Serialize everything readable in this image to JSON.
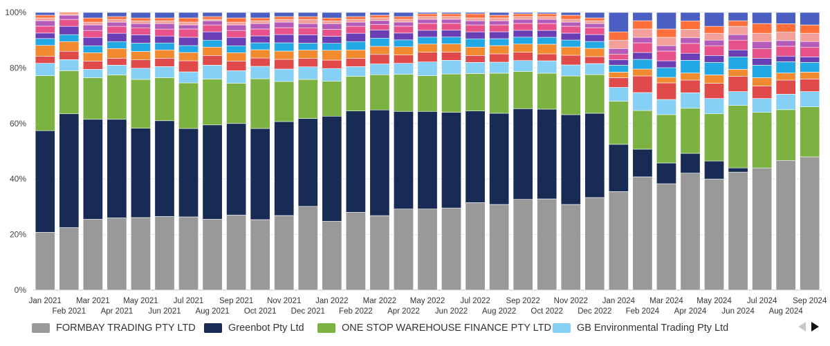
{
  "chart_data": {
    "type": "bar",
    "stacked": true,
    "normalized": true,
    "categories": [
      "Jan 2021",
      "Feb 2021",
      "Mar 2021",
      "Apr 2021",
      "May 2021",
      "Jun 2021",
      "Jul 2021",
      "Aug 2021",
      "Sep 2021",
      "Oct 2021",
      "Nov 2021",
      "Dec 2021",
      "Jan 2022",
      "Feb 2022",
      "Mar 2022",
      "Apr 2022",
      "May 2022",
      "Jun 2022",
      "Jul 2022",
      "Aug 2022",
      "Sep 2022",
      "Oct 2022",
      "Nov 2022",
      "Dec 2022",
      "Jan 2024",
      "Feb 2024",
      "Mar 2024",
      "Apr 2024",
      "May 2024",
      "Jun 2024",
      "Jul 2024",
      "Aug 2024",
      "Sep 2024"
    ],
    "x_tick_labels_row1": [
      "Jan 2021",
      "Mar 2021",
      "May 2021",
      "Jul 2021",
      "Sep 2021",
      "Nov 2021",
      "Jan 2022",
      "Mar 2022",
      "May 2022",
      "Jul 2022",
      "Sep 2022",
      "Nov 2022",
      "Jan 2024",
      "Mar 2024",
      "May 2024",
      "Jul 2024",
      "Sep 2024"
    ],
    "x_tick_labels_row2": [
      "Feb 2021",
      "Apr 2021",
      "Jun 2021",
      "Aug 2021",
      "Oct 2021",
      "Dec 2021",
      "Feb 2022",
      "Apr 2022",
      "Jun 2022",
      "Aug 2022",
      "Oct 2022",
      "Dec 2022",
      "Feb 2024",
      "Apr 2024",
      "Jun 2024",
      "Aug 2024"
    ],
    "y_tick_labels": [
      "0%",
      "20%",
      "40%",
      "60%",
      "80%",
      "100%"
    ],
    "ylim": [
      0,
      100
    ],
    "grid": true,
    "legend_position": "bottom",
    "series": [
      {
        "name": "FORMBAY TRADING PTY LTD",
        "color": "#999999",
        "values": [
          21,
          22.5,
          25.5,
          26,
          26,
          26.5,
          26.5,
          25.5,
          27,
          25.5,
          27,
          30,
          24.5,
          28,
          27.5,
          29.5,
          29.5,
          30,
          31.5,
          31,
          33,
          33,
          31,
          33.5,
          35.5,
          41,
          38.5,
          41.5,
          40,
          42.5,
          44,
          46,
          48
        ]
      },
      {
        "name": "Greenbot Pty Ltd",
        "color": "#172b54",
        "values": [
          37,
          41,
          36,
          35.5,
          32,
          34.5,
          32,
          34,
          33,
          33,
          34,
          31.5,
          37.5,
          36.5,
          39,
          35.5,
          35.5,
          35,
          33,
          33,
          33,
          32.5,
          32.5,
          30.5,
          17,
          10,
          7.5,
          7,
          6.5,
          1.5,
          0,
          0,
          0
        ]
      },
      {
        "name": "ONE STOP WAREHOUSE FINANCE PTY LTD",
        "color": "#7bb241",
        "values": [
          20,
          15.5,
          15,
          16,
          17.5,
          15.5,
          16.5,
          16.5,
          14.5,
          18,
          14.5,
          14,
          12.5,
          12.5,
          13,
          13.5,
          13,
          14,
          13.5,
          14.5,
          13.5,
          13,
          14,
          14,
          15.5,
          14,
          17.5,
          16,
          17,
          22.5,
          20,
          18,
          18
        ]
      },
      {
        "name": "GB Environmental Trading Pty Ltd",
        "color": "#86d0f5",
        "values": [
          4.5,
          4,
          3,
          3.5,
          4,
          4,
          4,
          5,
          4.5,
          4.5,
          4.5,
          4.5,
          4.5,
          3.5,
          4,
          4,
          5,
          5,
          4,
          4,
          4,
          4.5,
          4,
          4,
          5,
          6.5,
          5.5,
          5.5,
          5.5,
          5,
          5,
          5.5,
          5.5
        ]
      },
      {
        "name": "",
        "color": "#e04a4a",
        "values": [
          2.5,
          3,
          3,
          2.5,
          3,
          3,
          4,
          3.5,
          3.5,
          3,
          3.5,
          3,
          3,
          3,
          3.5,
          3,
          3.5,
          3,
          2.5,
          3,
          3,
          2.5,
          3.5,
          2.5,
          3.5,
          6,
          6,
          4.5,
          5.5,
          5.5,
          4.5,
          5,
          4.5
        ]
      },
      {
        "name": "",
        "color": "#f28b30",
        "values": [
          4,
          3.5,
          3,
          3.5,
          3,
          3,
          3,
          3,
          3,
          3,
          3,
          3,
          3.5,
          3,
          3,
          3,
          3,
          3,
          3,
          3,
          3,
          3.5,
          3,
          3,
          2,
          2.5,
          2,
          2.5,
          3,
          2.5,
          3,
          2.5,
          2.5
        ]
      },
      {
        "name": "",
        "color": "#23a8e6",
        "values": [
          2.5,
          2.5,
          2.5,
          2.5,
          3,
          2.5,
          2.5,
          2.5,
          2.5,
          2.5,
          3,
          2.5,
          2.5,
          3,
          3,
          2.5,
          2.5,
          2.5,
          3,
          2.5,
          2.5,
          2.5,
          2.5,
          2.5,
          2.5,
          3.5,
          3.5,
          4.5,
          4.5,
          4.5,
          4.5,
          4,
          3.5
        ]
      },
      {
        "name": "",
        "color": "#6a3fb5",
        "values": [
          2,
          3,
          3,
          3,
          3,
          2.5,
          3,
          3,
          3,
          2.5,
          3,
          3,
          2.5,
          3,
          3,
          2.5,
          2.5,
          2.5,
          2.5,
          2.5,
          2.5,
          2.5,
          2.5,
          2.5,
          2,
          2.5,
          2.5,
          2.5,
          2.5,
          2.5,
          2.5,
          2,
          2
        ]
      },
      {
        "name": "",
        "color": "#e8528b",
        "values": [
          2.5,
          2.5,
          2.5,
          2.5,
          2.5,
          2.5,
          3,
          2.5,
          2.5,
          2.5,
          2.5,
          2.5,
          2.5,
          2.5,
          2,
          2.5,
          2.5,
          2.5,
          2.5,
          2.5,
          2.5,
          2.5,
          2.5,
          2.5,
          2,
          3.5,
          3.5,
          3.5,
          3.5,
          3.5,
          3.5,
          3.5,
          3.5
        ]
      },
      {
        "name": "",
        "color": "#b45ab8",
        "values": [
          2,
          1.5,
          2,
          1.5,
          1.5,
          2,
          1.5,
          1.5,
          2,
          2,
          2,
          1.5,
          2,
          1.5,
          1.5,
          1.5,
          1.5,
          1.5,
          1.5,
          1.5,
          1.5,
          1.5,
          1.5,
          1.5,
          2,
          2,
          2,
          2,
          2,
          2,
          2.5,
          2,
          2
        ]
      },
      {
        "name": "",
        "color": "#f4a09a",
        "values": [
          1,
          0.5,
          1,
          1,
          1,
          1,
          1,
          0.5,
          1,
          1,
          1,
          1.5,
          1,
          1,
          1,
          1,
          1,
          1,
          1,
          1,
          1,
          1,
          1,
          1,
          3,
          3,
          3,
          3,
          2.5,
          3,
          3,
          3,
          3
        ]
      },
      {
        "name": "",
        "color": "#ff6f3c",
        "values": [
          1,
          0.5,
          1.5,
          1,
          1,
          1,
          1.5,
          1,
          1.5,
          1,
          1,
          1,
          1,
          1,
          1,
          1,
          1,
          1,
          1.5,
          1,
          1,
          1,
          1.5,
          1,
          3,
          3,
          3,
          3,
          2.5,
          2,
          3.5,
          3,
          3
        ]
      },
      {
        "name": "",
        "color": "#4a5fc1",
        "values": [
          1,
          0,
          2,
          1.5,
          2,
          2,
          2,
          1.5,
          2,
          2,
          1.5,
          1.5,
          2,
          1.5,
          1,
          1.5,
          0.5,
          0.5,
          0.5,
          1,
          0.5,
          0.5,
          1,
          2,
          7,
          3,
          6,
          3,
          5,
          3,
          4,
          4,
          4.5
        ]
      }
    ]
  },
  "pager": {
    "prev_icon": "chevron-left-icon",
    "next_icon": "chevron-right-icon"
  }
}
